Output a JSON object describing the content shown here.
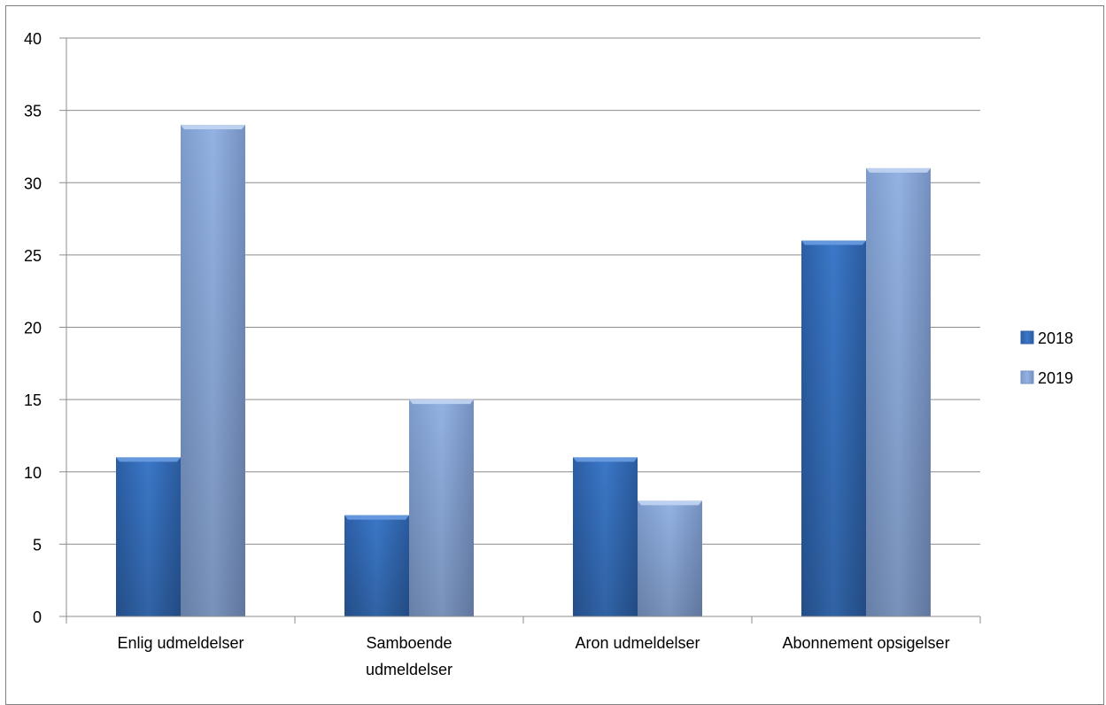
{
  "chart_data": {
    "type": "bar",
    "categories": [
      [
        "Enlig udmeldelser"
      ],
      [
        "Samboende",
        "udmeldelser"
      ],
      [
        "Aron udmeldelser"
      ],
      [
        "Abonnement opsigelser"
      ]
    ],
    "series": [
      {
        "name": "2018",
        "values": [
          11,
          7,
          11,
          26
        ],
        "color": "#3a74c2"
      },
      {
        "name": "2019",
        "values": [
          34,
          15,
          8,
          31
        ],
        "color": "#8eaee0"
      }
    ],
    "ylim": [
      0,
      40
    ],
    "yticks": [
      0,
      5,
      10,
      15,
      20,
      25,
      30,
      35,
      40
    ],
    "grid": true,
    "legend_position": "right",
    "title": "",
    "xlabel": "",
    "ylabel": ""
  }
}
